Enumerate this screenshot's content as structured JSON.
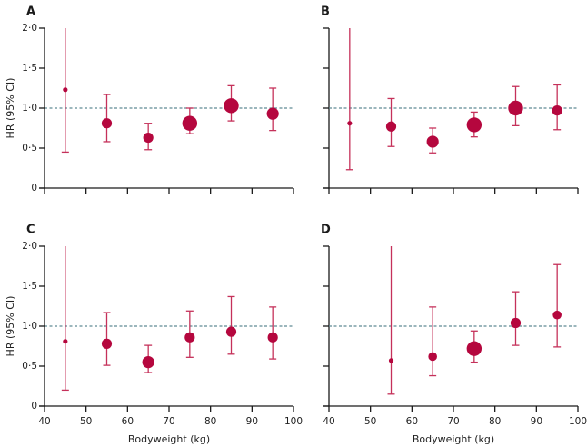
{
  "chart_data": [
    {
      "type": "scatter",
      "panel": "A",
      "title": "",
      "xlabel": "",
      "ylabel": "HR (95% CI)",
      "xlim": [
        40,
        100
      ],
      "ylim": [
        0,
        2.0
      ],
      "xticks": [
        40,
        50,
        60,
        70,
        80,
        90,
        100
      ],
      "yticks": [
        0,
        0.5,
        1.0,
        1.5,
        2.0
      ],
      "ytick_labels": [
        "0",
        "0·5",
        "1·0",
        "1·5",
        "2·0"
      ],
      "xtick_labels": [],
      "reference_line": 1.0,
      "points": [
        {
          "x": 45,
          "hr": 1.23,
          "lo": 0.45,
          "hi": 2.0,
          "weight": "small"
        },
        {
          "x": 55,
          "hr": 0.81,
          "lo": 0.58,
          "hi": 1.17,
          "weight": "medium"
        },
        {
          "x": 65,
          "hr": 0.63,
          "lo": 0.48,
          "hi": 0.81,
          "weight": "medium"
        },
        {
          "x": 75,
          "hr": 0.81,
          "lo": 0.68,
          "hi": 1.0,
          "weight": "large"
        },
        {
          "x": 85,
          "hr": 1.03,
          "lo": 0.84,
          "hi": 1.28,
          "weight": "large"
        },
        {
          "x": 95,
          "hr": 0.93,
          "lo": 0.72,
          "hi": 1.25,
          "weight": "medium-large"
        }
      ]
    },
    {
      "type": "scatter",
      "panel": "B",
      "title": "",
      "xlabel": "",
      "ylabel": "",
      "xlim": [
        40,
        100
      ],
      "ylim": [
        0,
        2.0
      ],
      "xticks": [
        40,
        50,
        60,
        70,
        80,
        90,
        100
      ],
      "yticks": [
        0,
        0.5,
        1.0,
        1.5,
        2.0
      ],
      "ytick_labels": [],
      "xtick_labels": [],
      "reference_line": 1.0,
      "points": [
        {
          "x": 45,
          "hr": 0.81,
          "lo": 0.23,
          "hi": 2.0,
          "weight": "small"
        },
        {
          "x": 55,
          "hr": 0.77,
          "lo": 0.52,
          "hi": 1.12,
          "weight": "medium"
        },
        {
          "x": 65,
          "hr": 0.58,
          "lo": 0.44,
          "hi": 0.75,
          "weight": "medium-large"
        },
        {
          "x": 75,
          "hr": 0.79,
          "lo": 0.64,
          "hi": 0.95,
          "weight": "large"
        },
        {
          "x": 85,
          "hr": 1.0,
          "lo": 0.78,
          "hi": 1.27,
          "weight": "large"
        },
        {
          "x": 95,
          "hr": 0.97,
          "lo": 0.73,
          "hi": 1.29,
          "weight": "medium"
        }
      ]
    },
    {
      "type": "scatter",
      "panel": "C",
      "title": "",
      "xlabel": "Bodyweight (kg)",
      "ylabel": "HR (95% CI)",
      "xlim": [
        40,
        100
      ],
      "ylim": [
        0,
        2.0
      ],
      "xticks": [
        40,
        50,
        60,
        70,
        80,
        90,
        100
      ],
      "yticks": [
        0,
        0.5,
        1.0,
        1.5,
        2.0
      ],
      "ytick_labels": [
        "0",
        "0·5",
        "1·0",
        "1·5",
        "2·0"
      ],
      "xtick_labels": [
        "40",
        "50",
        "60",
        "70",
        "80",
        "90",
        "100"
      ],
      "reference_line": 1.0,
      "points": [
        {
          "x": 45,
          "hr": 0.81,
          "lo": 0.2,
          "hi": 2.0,
          "weight": "small"
        },
        {
          "x": 55,
          "hr": 0.78,
          "lo": 0.51,
          "hi": 1.17,
          "weight": "medium"
        },
        {
          "x": 65,
          "hr": 0.55,
          "lo": 0.42,
          "hi": 0.76,
          "weight": "medium-large"
        },
        {
          "x": 75,
          "hr": 0.86,
          "lo": 0.61,
          "hi": 1.19,
          "weight": "medium"
        },
        {
          "x": 85,
          "hr": 0.93,
          "lo": 0.65,
          "hi": 1.37,
          "weight": "medium"
        },
        {
          "x": 95,
          "hr": 0.86,
          "lo": 0.59,
          "hi": 1.24,
          "weight": "medium"
        }
      ]
    },
    {
      "type": "scatter",
      "panel": "D",
      "title": "",
      "xlabel": "Bodyweight (kg)",
      "ylabel": "",
      "xlim": [
        40,
        100
      ],
      "ylim": [
        0,
        2.0
      ],
      "xticks": [
        40,
        50,
        60,
        70,
        80,
        90,
        100
      ],
      "yticks": [
        0,
        0.5,
        1.0,
        1.5,
        2.0
      ],
      "ytick_labels": [],
      "xtick_labels": [
        "40",
        "50",
        "60",
        "70",
        "80",
        "90",
        "100"
      ],
      "reference_line": 1.0,
      "points": [
        {
          "x": 55,
          "hr": 0.57,
          "lo": 0.15,
          "hi": 2.0,
          "weight": "small"
        },
        {
          "x": 65,
          "hr": 0.62,
          "lo": 0.38,
          "hi": 1.24,
          "weight": "medium-small"
        },
        {
          "x": 75,
          "hr": 0.72,
          "lo": 0.55,
          "hi": 0.94,
          "weight": "large"
        },
        {
          "x": 85,
          "hr": 1.04,
          "lo": 0.76,
          "hi": 1.43,
          "weight": "medium"
        },
        {
          "x": 95,
          "hr": 1.14,
          "lo": 0.74,
          "hi": 1.77,
          "weight": "medium-small"
        }
      ]
    }
  ],
  "colors": {
    "point": "#b5073e",
    "ci": "#c5315a",
    "reference_line": "#5f8a93",
    "axis": "#1a1a1a"
  }
}
